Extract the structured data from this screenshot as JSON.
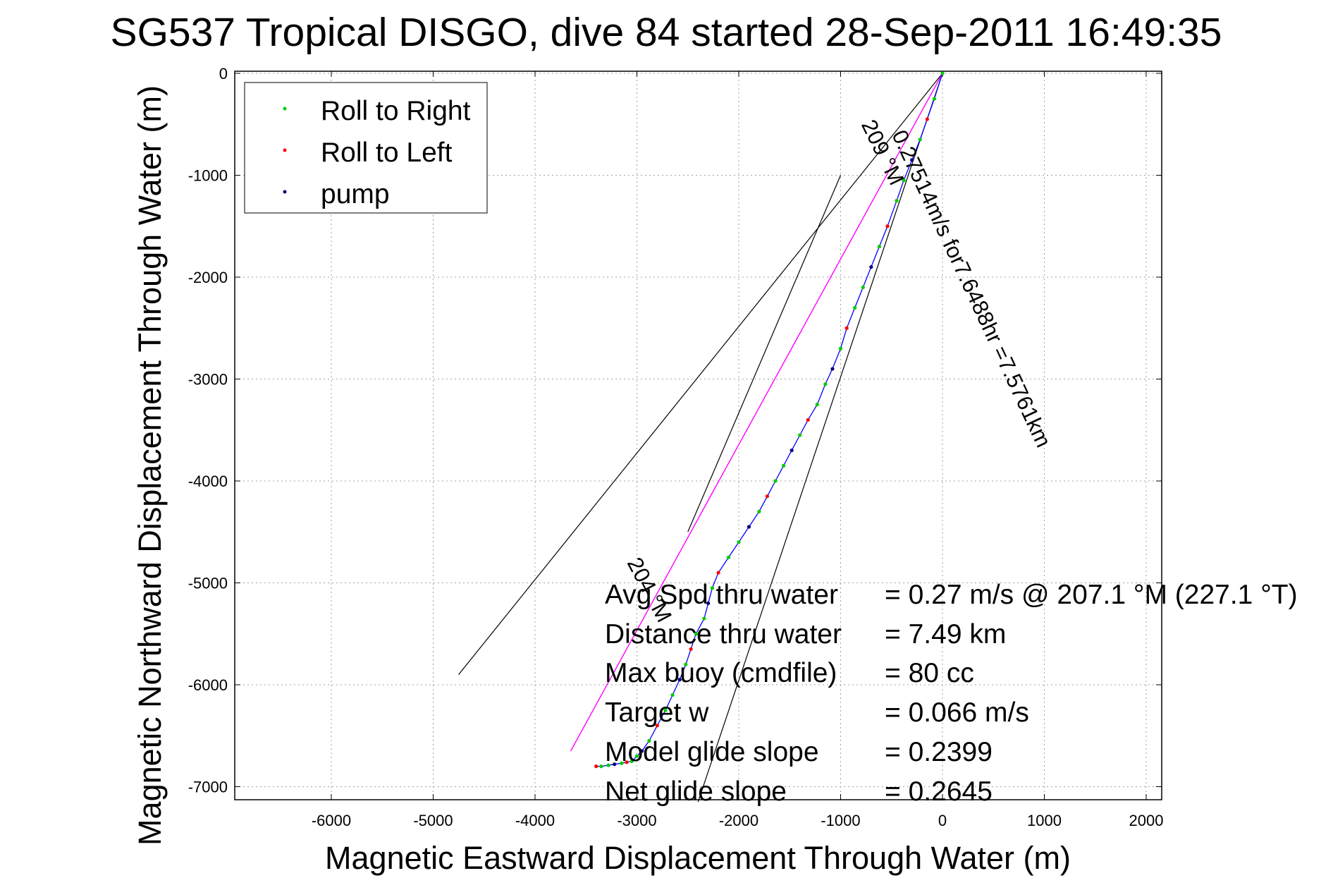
{
  "chart_data": {
    "type": "line",
    "title": "SG537 Tropical DISGO, dive 84 started 28-Sep-2011 16:49:35",
    "xlabel": "Magnetic Eastward Displacement Through Water (m)",
    "ylabel": "Magnetic Northward Displacement Through Water (m)",
    "xlim": [
      -7000,
      2200
    ],
    "ylim": [
      -7150,
      0
    ],
    "xticks": [
      -6000,
      -5000,
      -4000,
      -3000,
      -2000,
      -1000,
      0,
      1000,
      2000
    ],
    "yticks": [
      0,
      -1000,
      -2000,
      -3000,
      -4000,
      -5000,
      -6000,
      -7000
    ],
    "grid": true,
    "legend_position": "top-left",
    "legend": [
      {
        "label": "Roll to Right",
        "color": "#00cc00"
      },
      {
        "label": "Roll to Left",
        "color": "#ff0000"
      },
      {
        "label": "pump",
        "color": "#000080"
      }
    ],
    "track": {
      "color": "#0000ff",
      "x": [
        0,
        -80,
        -150,
        -220,
        -300,
        -380,
        -450,
        -540,
        -620,
        -700,
        -780,
        -860,
        -940,
        -1000,
        -1080,
        -1150,
        -1230,
        -1320,
        -1400,
        -1480,
        -1560,
        -1640,
        -1720,
        -1800,
        -1900,
        -2000,
        -2100,
        -2200,
        -2260,
        -2300,
        -2340,
        -2420,
        -2470,
        -2520,
        -2580,
        -2650,
        -2720,
        -2800,
        -2880,
        -2950,
        -3000,
        -3050,
        -3100,
        -3150,
        -3220,
        -3280,
        -3350,
        -3400
      ],
      "y": [
        0,
        -250,
        -450,
        -650,
        -850,
        -1050,
        -1250,
        -1500,
        -1700,
        -1900,
        -2100,
        -2300,
        -2500,
        -2700,
        -2900,
        -3050,
        -3250,
        -3400,
        -3550,
        -3700,
        -3850,
        -4000,
        -4150,
        -4300,
        -4450,
        -4600,
        -4750,
        -4900,
        -5050,
        -5200,
        -5350,
        -5500,
        -5650,
        -5800,
        -5950,
        -6100,
        -6250,
        -6400,
        -6550,
        -6650,
        -6700,
        -6750,
        -6760,
        -6770,
        -6780,
        -6790,
        -6800,
        -6800
      ]
    },
    "magenta_line": {
      "color": "#ff00ff",
      "x": [
        0,
        -3650
      ],
      "y": [
        0,
        -6650
      ]
    },
    "cone_lines": [
      {
        "x": [
          0,
          -4750
        ],
        "y": [
          0,
          -5900
        ],
        "color": "#000000"
      },
      {
        "x": [
          0,
          -2400
        ],
        "y": [
          0,
          -7150
        ],
        "color": "#000000"
      },
      {
        "x": [
          -1000,
          -2500
        ],
        "y": [
          -1000,
          -4500
        ],
        "color": "#000000"
      }
    ],
    "annotations": [
      {
        "text": "209 °M",
        "x": -800,
        "y": -500,
        "rotate": 64
      },
      {
        "text": "0.27514m/s for7.6488hr =7.5761km",
        "x": -500,
        "y": -600,
        "rotate": 65
      },
      {
        "text": "204 °M",
        "x": -3100,
        "y": -4800,
        "rotate": 62
      }
    ],
    "stats": {
      "labels": [
        "Avg Spd thru water",
        "Distance thru water",
        "Max buoy (cmdfile)",
        "Target w",
        "Model glide slope",
        "Net glide slope"
      ],
      "values": [
        "=  0.27 m/s @ 207.1 °M (227.1 °T)",
        "=  7.49 km",
        "= 80 cc",
        "= 0.066 m/s",
        "= 0.2399",
        "= 0.2645"
      ]
    }
  }
}
